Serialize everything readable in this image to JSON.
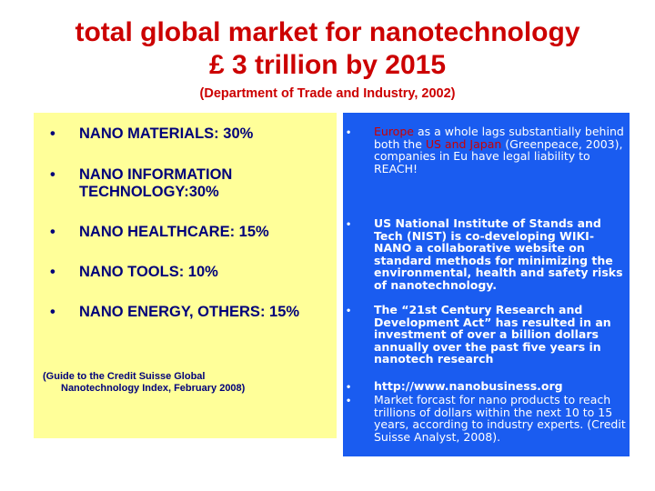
{
  "title": {
    "line1": "total global market for nanotechnology",
    "line2": "£ 3 trillion by 2015"
  },
  "subtitle": "(Department of Trade and Industry, 2002)",
  "left_panel": {
    "items": [
      {
        "bullet": "•",
        "label": "NANO MATERIALS: 30%"
      },
      {
        "bullet": "•",
        "label": "NANO INFORMATION TECHNOLOGY:30%"
      },
      {
        "bullet": "•",
        "label": "NANO HEALTHCARE: 15%"
      },
      {
        "bullet": "•",
        "label": "NANO TOOLS: 10%"
      },
      {
        "bullet": "•",
        "label": "NANO ENERGY, OTHERS: 15%"
      }
    ],
    "citation_line1": "(Guide to the Credit Suisse Global",
    "citation_line2": "Nanotechnology Index, February 2008)"
  },
  "right_panel": {
    "item1": {
      "bullet": "•",
      "part1": "Europe",
      "part2": " as a whole lags substantially behind both the ",
      "part3": "US and Japan",
      "part4": " (Greenpeace, 2003), companies in Eu have legal liability to REACH!"
    },
    "item2": {
      "bullet": "•",
      "text": "US National Institute of Stands and Tech (NIST) is co-developing WIKI-NANO a collaborative website on standard methods for minimizing the environmental, health and safety risks of nanotechnology."
    },
    "item3": {
      "bullet": "•",
      "text": "The “21st Century Research and Development Act” has resulted in an investment of over a billion dollars annually over the past five years in nanotech research"
    },
    "item4": {
      "bullet": "•",
      "text": "http://www.nanobusiness.org"
    },
    "item5": {
      "bullet": "•",
      "text": "Market forcast for nano products to reach trillions of dollars within the next 10 to 15 years, according to industry experts. (Credit Suisse Analyst, 2008)."
    }
  },
  "colors": {
    "title": "#cc0000",
    "left_bg": "#ffff99",
    "left_text": "#00007a",
    "right_bg": "#1a5cf0",
    "right_text": "#ffffff",
    "highlight": "#cc0000"
  }
}
